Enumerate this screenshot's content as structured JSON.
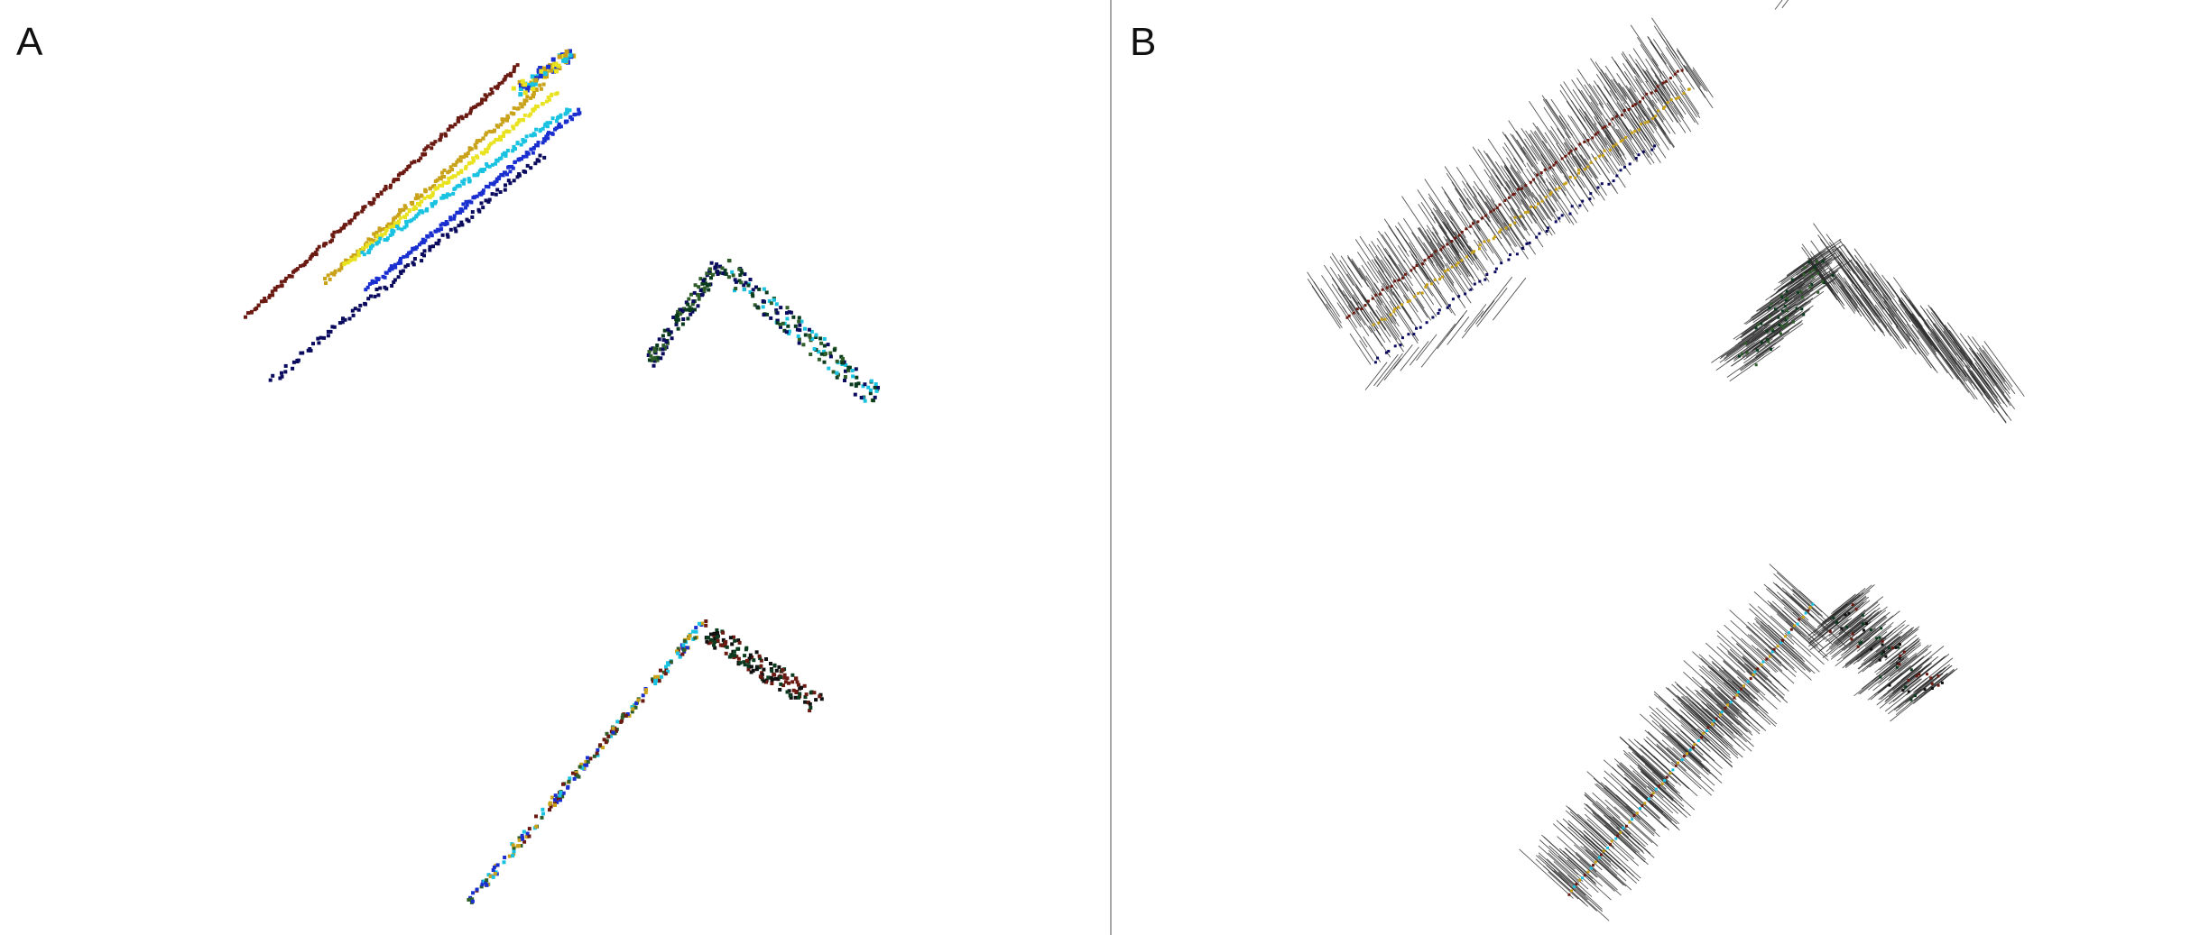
{
  "panels": [
    {
      "id": "A",
      "label": "A",
      "view": "point-cloud-colored"
    },
    {
      "id": "B",
      "label": "B",
      "view": "point-cloud-with-normals"
    }
  ],
  "colors": {
    "background": "#ffffff",
    "divider": "#a8a8a8",
    "normal_lines": "#2b2b2b",
    "palette": [
      "#0a0a5e",
      "#1a2fd0",
      "#19c2e0",
      "#e9e21f",
      "#c9a21a",
      "#6b1a12",
      "#2f5d2a",
      "#0b3b1e",
      "#101010"
    ]
  }
}
